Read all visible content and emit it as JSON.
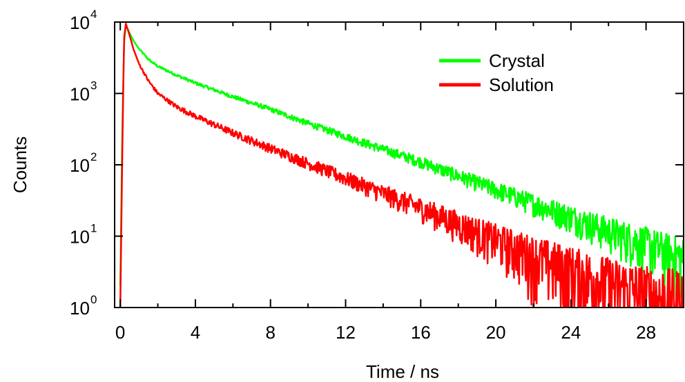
{
  "chart_data": {
    "type": "line",
    "xlabel": "Time / ns",
    "ylabel": "Counts",
    "xlim": [
      -0.3,
      30
    ],
    "ylim": [
      1,
      10000
    ],
    "yscale": "log",
    "x_ticks": [
      0,
      4,
      8,
      12,
      16,
      20,
      24,
      28
    ],
    "x_tick_labels": [
      "0",
      "4",
      "8",
      "12",
      "16",
      "20",
      "24",
      "28"
    ],
    "y_ticks": [
      {
        "value": 1,
        "base": "10",
        "exp": "0"
      },
      {
        "value": 10,
        "base": "10",
        "exp": "1"
      },
      {
        "value": 100,
        "base": "10",
        "exp": "2"
      },
      {
        "value": 1000,
        "base": "10",
        "exp": "3"
      },
      {
        "value": 10000,
        "base": "10",
        "exp": "4"
      }
    ],
    "grid": false,
    "legend_position": "top-right",
    "series": [
      {
        "name": "Crystal",
        "color": "#00ff00",
        "x": [
          0,
          0.1,
          0.2,
          0.3,
          0.5,
          0.7,
          1,
          1.5,
          2,
          3,
          4,
          6,
          8,
          10,
          12,
          14,
          16,
          18,
          20,
          22,
          24,
          26,
          28,
          30
        ],
        "y": [
          2,
          200,
          5000,
          9000,
          7000,
          5500,
          4200,
          3000,
          2400,
          1800,
          1400,
          900,
          600,
          380,
          250,
          165,
          110,
          70,
          45,
          29,
          19,
          12,
          8,
          5
        ]
      },
      {
        "name": "Solution",
        "color": "#ff0000",
        "x": [
          0,
          0.1,
          0.2,
          0.3,
          0.5,
          0.7,
          1,
          1.5,
          2,
          3,
          4,
          6,
          8,
          10,
          12,
          14,
          16,
          18,
          20,
          22,
          24,
          26,
          28,
          30
        ],
        "y": [
          1,
          100,
          6000,
          9500,
          6500,
          4200,
          2600,
          1500,
          1000,
          650,
          480,
          280,
          170,
          105,
          65,
          40,
          25,
          15,
          9,
          5.5,
          3.5,
          2.2,
          1.5,
          1.2
        ]
      }
    ]
  }
}
